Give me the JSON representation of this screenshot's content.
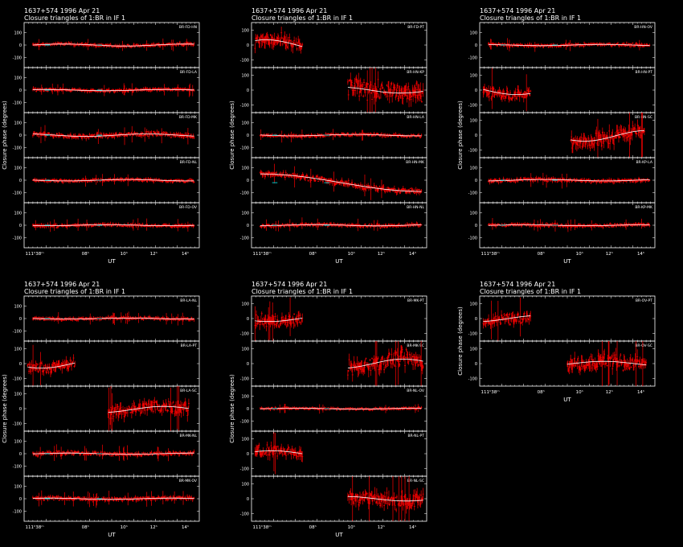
{
  "colors": {
    "background": "#000000",
    "frame": "#ffffff",
    "data_points": "#ff0000",
    "model_curve": "#ffffff",
    "gap_segment": "#00c8c8"
  },
  "chart_data": [
    {
      "type": "line",
      "title": "1637+574   1996 Apr 21",
      "subtitle": "Closure triangles of 1:BR in IF 1",
      "xlabel": "UT",
      "ylabel": "Closure phase   (degrees)",
      "x_ticks": [
        {
          "x": 0.06,
          "label": "111ʰ38ᵐ"
        },
        {
          "x": 0.35,
          "label": "08ʰ"
        },
        {
          "x": 0.57,
          "label": "10ʰ"
        },
        {
          "x": 0.74,
          "label": "12ʰ"
        },
        {
          "x": 0.92,
          "label": "14ʰ"
        }
      ],
      "panels": [
        {
          "label": "BR-FD-HN",
          "ylim": [
            -180,
            180
          ],
          "y_ticks": [
            "100",
            "0",
            "-100"
          ],
          "series": [
            {
              "x": [
                0.05,
                0.97
              ],
              "mean": 0,
              "amp": 8,
              "noise": 8
            }
          ]
        },
        {
          "label": "BR-FD-LA",
          "ylim": [
            -180,
            180
          ],
          "y_ticks": [
            "100",
            "0",
            "-100"
          ],
          "series": [
            {
              "x": [
                0.05,
                0.97
              ],
              "mean": 0,
              "amp": 5,
              "noise": 8
            }
          ]
        },
        {
          "label": "BR-FD-MK",
          "ylim": [
            -180,
            180
          ],
          "y_ticks": [
            "100",
            "0",
            "-100"
          ],
          "series": [
            {
              "x": [
                0.05,
                0.97
              ],
              "mean": 0,
              "amp": 10,
              "noise": 12
            }
          ]
        },
        {
          "label": "BR-FD-NL",
          "ylim": [
            -180,
            180
          ],
          "y_ticks": [
            "100",
            "0",
            "-100"
          ],
          "series": [
            {
              "x": [
                0.05,
                0.97
              ],
              "mean": 0,
              "amp": 6,
              "noise": 8
            }
          ]
        },
        {
          "label": "BR-FD-OV",
          "ylim": [
            -180,
            180
          ],
          "y_ticks": [
            "100",
            "0",
            "-100"
          ],
          "series": [
            {
              "x": [
                0.05,
                0.97
              ],
              "mean": 0,
              "amp": 4,
              "noise": 8
            }
          ]
        }
      ]
    },
    {
      "type": "line",
      "title": "1637+574   1996 Apr 21",
      "subtitle": "Closure triangles of 1:BR in IF 1",
      "xlabel": "UT",
      "ylabel": "Closure phase   (degrees)",
      "x_ticks": [
        {
          "x": 0.06,
          "label": "111ʰ38ᵐ"
        },
        {
          "x": 0.35,
          "label": "08ʰ"
        },
        {
          "x": 0.57,
          "label": "10ʰ"
        },
        {
          "x": 0.74,
          "label": "12ʰ"
        },
        {
          "x": 0.92,
          "label": "14ʰ"
        }
      ],
      "panels": [
        {
          "label": "BR-FD-PT",
          "ylim": [
            -150,
            150
          ],
          "y_ticks": [
            "100",
            "0",
            "-100"
          ],
          "series": [
            {
              "x": [
                0.02,
                0.29
              ],
              "mean": 0,
              "amp": 35,
              "noise": 30
            }
          ]
        },
        {
          "label": "BR-HN-KP",
          "ylim": [
            -150,
            150
          ],
          "y_ticks": [
            "100",
            "0",
            "-100"
          ],
          "series": [
            {
              "x": [
                0.55,
                0.98
              ],
              "mean": 0,
              "amp": 20,
              "noise": 40
            }
          ]
        },
        {
          "label": "BR-HN-LA",
          "ylim": [
            -180,
            180
          ],
          "y_ticks": [
            "100",
            "0",
            "-100"
          ],
          "series": [
            {
              "x": [
                0.05,
                0.97
              ],
              "mean": 0,
              "amp": 6,
              "noise": 8
            }
          ]
        },
        {
          "label": "BR-HN-MK",
          "ylim": [
            -180,
            180
          ],
          "y_ticks": [
            "100",
            "0",
            "-100"
          ],
          "series": [
            {
              "x": [
                0.05,
                0.97
              ],
              "mean": -20,
              "amp": 70,
              "noise": 15,
              "trend": true
            }
          ]
        },
        {
          "label": "BR-HN-NL",
          "ylim": [
            -180,
            180
          ],
          "y_ticks": [
            "100",
            "0",
            "-100"
          ],
          "series": [
            {
              "x": [
                0.05,
                0.97
              ],
              "mean": 0,
              "amp": 5,
              "noise": 8
            }
          ]
        }
      ]
    },
    {
      "type": "line",
      "title": "1637+574   1996 Apr 21",
      "subtitle": "Closure triangles of 1:BR in IF 1",
      "xlabel": "UT",
      "ylabel": "Closure phase   (degrees)",
      "x_ticks": [
        {
          "x": 0.06,
          "label": "111ʰ38ᵐ"
        },
        {
          "x": 0.35,
          "label": "08ʰ"
        },
        {
          "x": 0.57,
          "label": "10ʰ"
        },
        {
          "x": 0.74,
          "label": "12ʰ"
        },
        {
          "x": 0.92,
          "label": "14ʰ"
        }
      ],
      "panels": [
        {
          "label": "BR-HN-OV",
          "ylim": [
            -180,
            180
          ],
          "y_ticks": [
            "100",
            "0",
            "-100"
          ],
          "series": [
            {
              "x": [
                0.05,
                0.97
              ],
              "mean": 0,
              "amp": 5,
              "noise": 8
            }
          ]
        },
        {
          "label": "BR-HN-PT",
          "ylim": [
            -150,
            150
          ],
          "y_ticks": [
            "100",
            "0",
            "-100"
          ],
          "series": [
            {
              "x": [
                0.02,
                0.29
              ],
              "mean": 0,
              "amp": 30,
              "noise": 25
            }
          ]
        },
        {
          "label": "BR-HN-SC",
          "ylim": [
            -150,
            150
          ],
          "y_ticks": [
            "100",
            "0",
            "-100"
          ],
          "series": [
            {
              "x": [
                0.52,
                0.94
              ],
              "mean": -5,
              "amp": 35,
              "noise": 35
            }
          ]
        },
        {
          "label": "BR-KP-LA",
          "ylim": [
            -180,
            180
          ],
          "y_ticks": [
            "100",
            "0",
            "-100"
          ],
          "series": [
            {
              "x": [
                0.05,
                0.97
              ],
              "mean": 0,
              "amp": 6,
              "noise": 10
            }
          ]
        },
        {
          "label": "BR-KP-MK",
          "ylim": [
            -180,
            180
          ],
          "y_ticks": [
            "100",
            "0",
            "-100"
          ],
          "series": [
            {
              "x": [
                0.05,
                0.97
              ],
              "mean": 0,
              "amp": 4,
              "noise": 8
            }
          ]
        }
      ]
    },
    {
      "type": "line",
      "title": "1637+574   1996 Apr 21",
      "subtitle": "Closure triangles of 1:BR in IF 1",
      "xlabel": "UT",
      "ylabel": "Closure phase   (degrees)",
      "x_ticks": [
        {
          "x": 0.06,
          "label": "111ʰ38ᵐ"
        },
        {
          "x": 0.35,
          "label": "08ʰ"
        },
        {
          "x": 0.57,
          "label": "10ʰ"
        },
        {
          "x": 0.74,
          "label": "12ʰ"
        },
        {
          "x": 0.92,
          "label": "14ʰ"
        }
      ],
      "panels": [
        {
          "label": "BR-LA-NL",
          "ylim": [
            -180,
            180
          ],
          "y_ticks": [
            "100",
            "0",
            "-100"
          ],
          "series": [
            {
              "x": [
                0.05,
                0.97
              ],
              "mean": 0,
              "amp": 4,
              "noise": 8
            }
          ]
        },
        {
          "label": "BR-LA-PT",
          "ylim": [
            -150,
            150
          ],
          "y_ticks": [
            "100",
            "0",
            "-100"
          ],
          "series": [
            {
              "x": [
                0.02,
                0.29
              ],
              "mean": 0,
              "amp": 30,
              "noise": 25
            }
          ]
        },
        {
          "label": "BR-LA-SC",
          "ylim": [
            -150,
            150
          ],
          "y_ticks": [
            "100",
            "0",
            "-100"
          ],
          "series": [
            {
              "x": [
                0.48,
                0.94
              ],
              "mean": -5,
              "amp": 20,
              "noise": 30
            }
          ]
        },
        {
          "label": "BR-MK-NL",
          "ylim": [
            -180,
            180
          ],
          "y_ticks": [
            "100",
            "0",
            "-100"
          ],
          "series": [
            {
              "x": [
                0.05,
                0.97
              ],
              "mean": 0,
              "amp": 5,
              "noise": 10
            }
          ]
        },
        {
          "label": "BR-MK-OV",
          "ylim": [
            -180,
            180
          ],
          "y_ticks": [
            "100",
            "0",
            "-100"
          ],
          "series": [
            {
              "x": [
                0.05,
                0.97
              ],
              "mean": 0,
              "amp": 5,
              "noise": 10
            }
          ]
        }
      ]
    },
    {
      "type": "line",
      "title": "1637+574   1996 Apr 21",
      "subtitle": "Closure triangles of 1:BR in IF 1",
      "xlabel": "UT",
      "ylabel": "Closure phase   (degrees)",
      "x_ticks": [
        {
          "x": 0.06,
          "label": "111ʰ38ᵐ"
        },
        {
          "x": 0.35,
          "label": "08ʰ"
        },
        {
          "x": 0.57,
          "label": "10ʰ"
        },
        {
          "x": 0.74,
          "label": "12ʰ"
        },
        {
          "x": 0.92,
          "label": "14ʰ"
        }
      ],
      "panels": [
        {
          "label": "BR-MK-PT",
          "ylim": [
            -150,
            150
          ],
          "y_ticks": [
            "100",
            "0",
            "-100"
          ],
          "series": [
            {
              "x": [
                0.02,
                0.29
              ],
              "mean": 0,
              "amp": 20,
              "noise": 25
            }
          ]
        },
        {
          "label": "BR-MK-SC",
          "ylim": [
            -150,
            150
          ],
          "y_ticks": [
            "100",
            "0",
            "-100"
          ],
          "series": [
            {
              "x": [
                0.55,
                0.98
              ],
              "mean": 0,
              "amp": 30,
              "noise": 35
            }
          ]
        },
        {
          "label": "BR-NL-OV",
          "ylim": [
            -180,
            180
          ],
          "y_ticks": [
            "100",
            "0",
            "-100"
          ],
          "series": [
            {
              "x": [
                0.05,
                0.97
              ],
              "mean": 0,
              "amp": 3,
              "noise": 6
            }
          ]
        },
        {
          "label": "BR-NL-PT",
          "ylim": [
            -150,
            150
          ],
          "y_ticks": [
            "100",
            "0",
            "-100"
          ],
          "series": [
            {
              "x": [
                0.02,
                0.29
              ],
              "mean": 0,
              "amp": 20,
              "noise": 25
            }
          ]
        },
        {
          "label": "BR-NL-SC",
          "ylim": [
            -150,
            150
          ],
          "y_ticks": [
            "100",
            "0",
            "-100"
          ],
          "series": [
            {
              "x": [
                0.55,
                0.98
              ],
              "mean": 0,
              "amp": 15,
              "noise": 35
            }
          ]
        }
      ]
    },
    {
      "type": "line",
      "title": "1637+574   1996 Apr 21",
      "subtitle": "Closure triangles of 1:BR in IF 1",
      "xlabel": "UT",
      "ylabel": "Closure phase   (degrees)",
      "x_ticks": [
        {
          "x": 0.06,
          "label": "111ʰ38ᵐ"
        },
        {
          "x": 0.35,
          "label": "08ʰ"
        },
        {
          "x": 0.57,
          "label": "10ʰ"
        },
        {
          "x": 0.74,
          "label": "12ʰ"
        },
        {
          "x": 0.92,
          "label": "14ʰ"
        }
      ],
      "panels": [
        {
          "label": "BR-OV-PT",
          "ylim": [
            -150,
            150
          ],
          "y_ticks": [
            "100",
            "0",
            "-100"
          ],
          "series": [
            {
              "x": [
                0.02,
                0.29
              ],
              "mean": 0,
              "amp": 20,
              "noise": 25
            }
          ]
        },
        {
          "label": "BR-OV-SC",
          "ylim": [
            -150,
            150
          ],
          "y_ticks": [
            "100",
            "0",
            "-100"
          ],
          "series": [
            {
              "x": [
                0.5,
                0.95
              ],
              "mean": 0,
              "amp": 15,
              "noise": 35
            }
          ]
        }
      ]
    }
  ]
}
